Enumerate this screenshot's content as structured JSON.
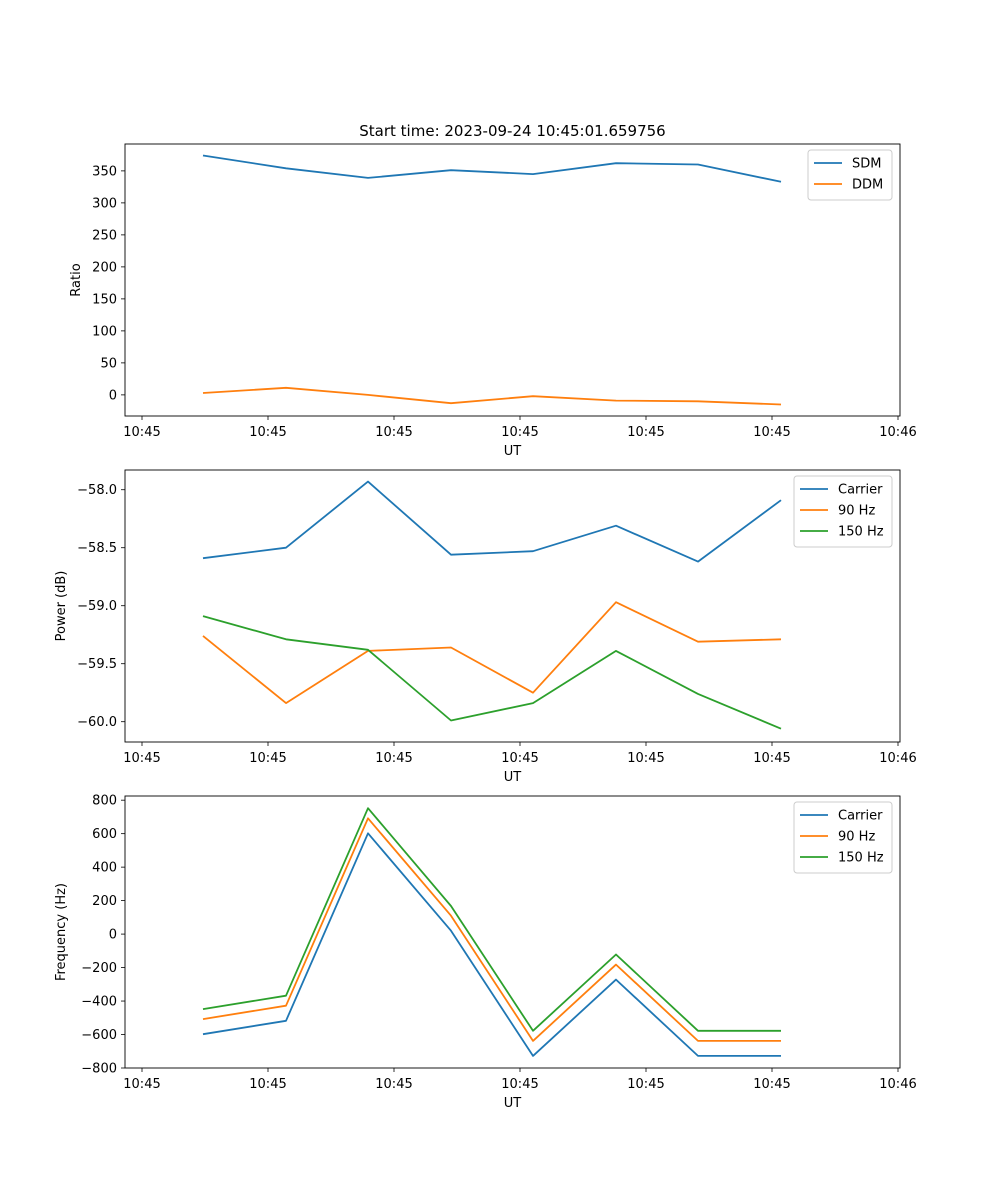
{
  "figure_title": "Start time: 2023-09-24 10:45:01.659756",
  "chart_data": [
    {
      "type": "line",
      "name": "ratio",
      "title": "Start time: 2023-09-24 10:45:01.659756",
      "xlabel": "UT",
      "ylabel": "Ratio",
      "x_tick_labels": [
        "10:45",
        "10:45",
        "10:45",
        "10:45",
        "10:45",
        "10:45",
        "10:46"
      ],
      "y_ticks": [
        0,
        50,
        100,
        150,
        200,
        250,
        300,
        350
      ],
      "ylim": [
        -33,
        392
      ],
      "legend": "top-right",
      "series": [
        {
          "name": "SDM",
          "color": "#1f77b4",
          "values": [
            374,
            354,
            339,
            351,
            345,
            362,
            360,
            333
          ]
        },
        {
          "name": "DDM",
          "color": "#ff7f0e",
          "values": [
            3,
            11,
            0,
            -13,
            -2,
            -9,
            -10,
            -15
          ]
        }
      ]
    },
    {
      "type": "line",
      "name": "power",
      "xlabel": "UT",
      "ylabel": "Power (dB)",
      "x_tick_labels": [
        "10:45",
        "10:45",
        "10:45",
        "10:45",
        "10:45",
        "10:45",
        "10:46"
      ],
      "y_ticks": [
        -60.0,
        -59.5,
        -59.0,
        -58.5,
        -58.0
      ],
      "y_tick_labels": [
        "−60.0",
        "−59.5",
        "−59.0",
        "−58.5",
        "−58.0"
      ],
      "ylim": [
        -60.175,
        -57.83
      ],
      "legend": "top-right",
      "series": [
        {
          "name": "Carrier",
          "color": "#1f77b4",
          "values": [
            -58.59,
            -58.5,
            -57.93,
            -58.56,
            -58.53,
            -58.31,
            -58.62,
            -58.09
          ]
        },
        {
          "name": "90 Hz",
          "color": "#ff7f0e",
          "values": [
            -59.26,
            -59.84,
            -59.39,
            -59.36,
            -59.75,
            -58.97,
            -59.31,
            -59.29
          ]
        },
        {
          "name": "150 Hz",
          "color": "#2ca02c",
          "values": [
            -59.09,
            -59.29,
            -59.38,
            -59.99,
            -59.84,
            -59.39,
            -59.76,
            -60.06
          ]
        }
      ]
    },
    {
      "type": "line",
      "name": "frequency",
      "xlabel": "UT",
      "ylabel": "Frequency (Hz)",
      "x_tick_labels": [
        "10:45",
        "10:45",
        "10:45",
        "10:45",
        "10:45",
        "10:45",
        "10:46"
      ],
      "y_ticks": [
        -800,
        -600,
        -400,
        -200,
        0,
        200,
        400,
        600,
        800
      ],
      "y_tick_labels": [
        "−800",
        "−600",
        "−400",
        "−200",
        "0",
        "200",
        "400",
        "600",
        "800"
      ],
      "ylim": [
        -800,
        825
      ],
      "legend": "top-right",
      "series": [
        {
          "name": "Carrier",
          "color": "#1f77b4",
          "values": [
            -598,
            -518,
            602,
            20,
            -728,
            -272,
            -728,
            -728
          ]
        },
        {
          "name": "90 Hz",
          "color": "#ff7f0e",
          "values": [
            -508,
            -428,
            692,
            110,
            -638,
            -182,
            -638,
            -638
          ]
        },
        {
          "name": "150 Hz",
          "color": "#2ca02c",
          "values": [
            -448,
            -368,
            752,
            168,
            -578,
            -122,
            -578,
            -578
          ]
        }
      ]
    }
  ]
}
